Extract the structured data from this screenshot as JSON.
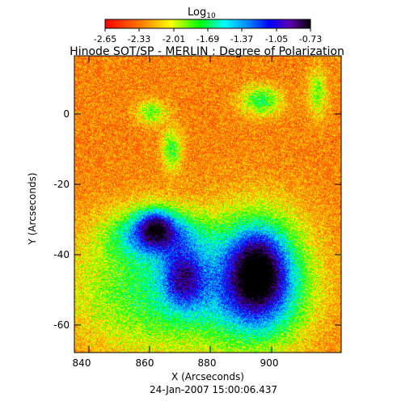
{
  "colorbar": {
    "label": "Log",
    "label_sub": "10",
    "ticks": [
      "-2.65",
      "-2.33",
      "-2.01",
      "-1.69",
      "-1.37",
      "-1.05",
      "-0.73"
    ],
    "colors": [
      "#ff0000",
      "#ff8000",
      "#ffff00",
      "#00ff00",
      "#00ffff",
      "#0080ff",
      "#0000ff",
      "#8000c0",
      "#000000"
    ]
  },
  "title": "Hinode SOT/SP - MERLIN : Degree of Polarization",
  "x_axis": {
    "label": "X (Arcseconds)",
    "ticks": [
      "840",
      "860",
      "880",
      "900"
    ]
  },
  "y_axis": {
    "label": "Y (Arcseconds)",
    "ticks": [
      "0",
      "-20",
      "-40",
      "-60"
    ]
  },
  "timestamp": "24-Jan-2007 15:00:06.437"
}
